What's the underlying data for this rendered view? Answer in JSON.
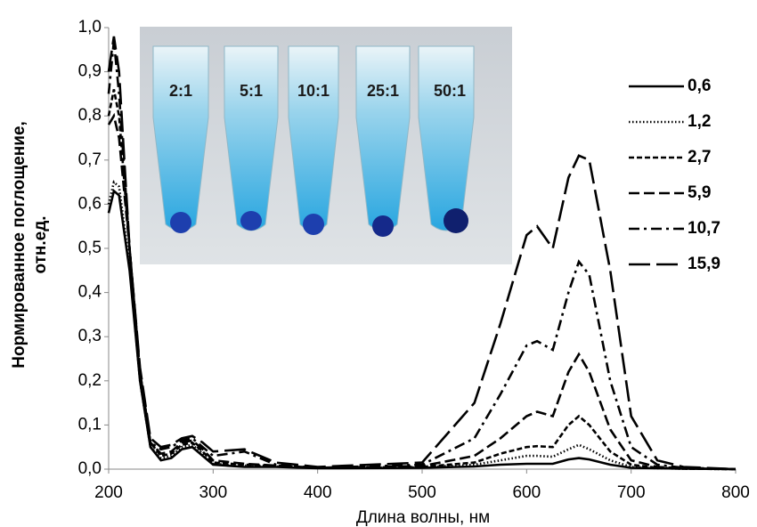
{
  "chart_data": {
    "type": "line",
    "x_label": "Длина волны, нм",
    "y_label": [
      "Нормированное поглощение,",
      "отн.ед."
    ],
    "inset_labels": [
      "2:1",
      "5:1",
      "10:1",
      "25:1",
      "50:1"
    ],
    "xlim": [
      200,
      800
    ],
    "xticks": [
      200,
      300,
      400,
      500,
      600,
      700,
      800
    ],
    "ylim": [
      0,
      1
    ],
    "yticks": [
      {
        "value": 0,
        "label": "0,0"
      },
      {
        "value": 0.1,
        "label": "0,1"
      },
      {
        "value": 0.2,
        "label": "0,2"
      },
      {
        "value": 0.3,
        "label": "0,3"
      },
      {
        "value": 0.4,
        "label": "0,4"
      },
      {
        "value": 0.5,
        "label": "0,5"
      },
      {
        "value": 0.6,
        "label": "0,6"
      },
      {
        "value": 0.7,
        "label": "0,7"
      },
      {
        "value": 0.8,
        "label": "0,8"
      },
      {
        "value": 0.9,
        "label": "0,9"
      },
      {
        "value": 1,
        "label": "1,0"
      }
    ],
    "grid": false,
    "legend": "right",
    "x": [
      200,
      205,
      210,
      220,
      230,
      240,
      250,
      260,
      270,
      280,
      290,
      300,
      330,
      360,
      400,
      500,
      550,
      575,
      600,
      610,
      625,
      640,
      650,
      660,
      680,
      700,
      725,
      750,
      800
    ],
    "series": [
      {
        "name": "0,6",
        "color": "#000000",
        "dash": "solid",
        "values": [
          0.58,
          0.63,
          0.62,
          0.45,
          0.2,
          0.05,
          0.02,
          0.025,
          0.045,
          0.05,
          0.03,
          0.01,
          0.005,
          0.005,
          0.002,
          0.003,
          0.006,
          0.01,
          0.012,
          0.012,
          0.012,
          0.022,
          0.025,
          0.022,
          0.01,
          0.003,
          0.002,
          0.001,
          0
        ]
      },
      {
        "name": "1,2",
        "color": "#000000",
        "dash": "dotted",
        "values": [
          0.6,
          0.65,
          0.64,
          0.46,
          0.2,
          0.05,
          0.025,
          0.03,
          0.05,
          0.055,
          0.035,
          0.012,
          0.008,
          0.006,
          0.003,
          0.004,
          0.01,
          0.02,
          0.03,
          0.03,
          0.028,
          0.045,
          0.055,
          0.045,
          0.02,
          0.005,
          0.002,
          0.001,
          0
        ]
      },
      {
        "name": "2,7",
        "color": "#000000",
        "dash": "short-dash",
        "values": [
          0.8,
          0.86,
          0.8,
          0.5,
          0.22,
          0.06,
          0.03,
          0.035,
          0.055,
          0.06,
          0.04,
          0.015,
          0.01,
          0.007,
          0.003,
          0.005,
          0.015,
          0.035,
          0.05,
          0.052,
          0.05,
          0.1,
          0.12,
          0.1,
          0.04,
          0.01,
          0.003,
          0.001,
          0
        ]
      },
      {
        "name": "5,9",
        "color": "#000000",
        "dash": "dash",
        "values": [
          0.78,
          0.8,
          0.75,
          0.5,
          0.22,
          0.06,
          0.035,
          0.04,
          0.06,
          0.065,
          0.045,
          0.02,
          0.012,
          0.008,
          0.003,
          0.007,
          0.03,
          0.07,
          0.12,
          0.13,
          0.12,
          0.22,
          0.26,
          0.22,
          0.09,
          0.02,
          0.005,
          0.002,
          0
        ]
      },
      {
        "name": "10,7",
        "color": "#000000",
        "dash": "dash-dot",
        "values": [
          0.85,
          0.97,
          0.85,
          0.5,
          0.22,
          0.06,
          0.045,
          0.05,
          0.065,
          0.07,
          0.05,
          0.03,
          0.04,
          0.01,
          0.003,
          0.01,
          0.07,
          0.17,
          0.28,
          0.29,
          0.27,
          0.4,
          0.47,
          0.44,
          0.2,
          0.05,
          0.01,
          0.003,
          0
        ]
      },
      {
        "name": "15,9",
        "color": "#000000",
        "dash": "long-dash",
        "values": [
          0.9,
          0.98,
          0.9,
          0.5,
          0.23,
          0.07,
          0.05,
          0.055,
          0.07,
          0.075,
          0.06,
          0.04,
          0.045,
          0.015,
          0.005,
          0.015,
          0.15,
          0.33,
          0.53,
          0.55,
          0.5,
          0.66,
          0.71,
          0.7,
          0.45,
          0.12,
          0.02,
          0.005,
          0
        ]
      }
    ]
  }
}
